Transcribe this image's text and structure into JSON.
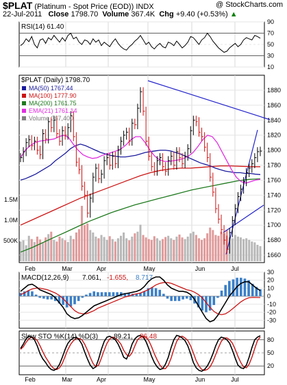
{
  "header": {
    "symbol": "$PLAT",
    "name": "(Platinum  - Spot Price (EOD))",
    "exchange": "INDX",
    "brand": "@ StockCharts.com",
    "date": "22-Jul-2011",
    "close_label": "Close",
    "close_value": "1798.70",
    "volume_label": "Volume",
    "volume_value": "367.4K",
    "chg_label": "Chg",
    "chg_value": "+9.40 (+0.53%)",
    "chg_arrow": "▲"
  },
  "chart_data": [
    {
      "type": "line",
      "panel": "rsi",
      "legend": "RSI(14) 61.40",
      "ylim": [
        10,
        90
      ],
      "yticks": [
        "90",
        "70",
        "50",
        "30",
        "10"
      ],
      "series": [
        {
          "name": "RSI(14)",
          "color": "#000000",
          "values": [
            48,
            52,
            60,
            55,
            64,
            50,
            44,
            58,
            60,
            52,
            62,
            58,
            66,
            60,
            54,
            62,
            56,
            66,
            70,
            60,
            63,
            54,
            50,
            58,
            56,
            50,
            60,
            54,
            58,
            48,
            54,
            50,
            46,
            54,
            60,
            52,
            46,
            42,
            40,
            46,
            50,
            56,
            60,
            66,
            58,
            50,
            54,
            46,
            42,
            48,
            52,
            46,
            44,
            54,
            52,
            48,
            56,
            50,
            44,
            48,
            54,
            64,
            62,
            56,
            50,
            58,
            62,
            70,
            64,
            56,
            50,
            44,
            40,
            36,
            38,
            44,
            48,
            52,
            46,
            50,
            58,
            62,
            60,
            58,
            66,
            64,
            61
          ]
        }
      ]
    },
    {
      "type": "line",
      "panel": "price",
      "title": "$PLAT (Daily) 1798.70",
      "legend": [
        {
          "label": "MA(50) 1767.44",
          "color": "#1a1a9e"
        },
        {
          "label": "MA(100) 1777.90",
          "color": "#cc1414"
        },
        {
          "label": "MA(200) 1761.75",
          "color": "#1e7a1e"
        },
        {
          "label": "EMA(21) 1761.14",
          "color": "#e12ee1"
        },
        {
          "label": "Volume 367,400",
          "color": "#808080"
        }
      ],
      "ylim": [
        1650,
        1900
      ],
      "yticks": [
        "1880",
        "1860",
        "1840",
        "1820",
        "1800",
        "1780",
        "1760",
        "1740",
        "1720",
        "1700",
        "1680",
        "1660"
      ],
      "volume_ticks": [
        "1.5M",
        "1.0M",
        "500K"
      ],
      "xlabels": [
        "Feb",
        "Mar",
        "Apr",
        "May",
        "Jun",
        "Jul"
      ],
      "close": [
        1790,
        1798,
        1810,
        1814,
        1806,
        1812,
        1800,
        1794,
        1822,
        1815,
        1838,
        1830,
        1840,
        1822,
        1812,
        1826,
        1820,
        1830,
        1846,
        1818,
        1784,
        1774,
        1752,
        1740,
        1716,
        1736,
        1764,
        1776,
        1762,
        1768,
        1786,
        1790,
        1780,
        1792,
        1782,
        1800,
        1812,
        1820,
        1824,
        1812,
        1836,
        1834,
        1856,
        1878,
        1852,
        1812,
        1792,
        1778,
        1772,
        1786,
        1790,
        1778,
        1772,
        1786,
        1792,
        1780,
        1798,
        1790,
        1782,
        1792,
        1802,
        1826,
        1840,
        1838,
        1824,
        1818,
        1804,
        1790,
        1764,
        1744,
        1722,
        1708,
        1694,
        1680,
        1668,
        1690,
        1706,
        1722,
        1738,
        1748,
        1758,
        1770,
        1776,
        1782,
        1790,
        1798,
        1798.7
      ],
      "ma50": [
        1760,
        1762,
        1765,
        1768,
        1772,
        1776,
        1780,
        1786,
        1791,
        1796,
        1802,
        1806,
        1808,
        1806,
        1803,
        1800,
        1797,
        1795,
        1793,
        1792,
        1791,
        1791,
        1792,
        1793,
        1795,
        1797,
        1798,
        1799,
        1800,
        1800,
        1799,
        1797,
        1795,
        1792,
        1789,
        1786,
        1783,
        1781,
        1779,
        1776,
        1774,
        1772,
        1771,
        1770,
        1770,
        1769,
        1769,
        1768,
        1767.4
      ],
      "ma100": [
        1700,
        1706,
        1712,
        1718,
        1724,
        1730,
        1736,
        1741,
        1746,
        1751,
        1756,
        1761,
        1766,
        1770,
        1773,
        1775,
        1776,
        1776,
        1777,
        1778,
        1779,
        1779,
        1778.5,
        1778,
        1777.9
      ],
      "ma200": [
        1664,
        1670,
        1677,
        1684,
        1691,
        1698,
        1705,
        1711,
        1717,
        1722,
        1727,
        1731,
        1735,
        1739,
        1743,
        1747,
        1750,
        1753,
        1756,
        1759,
        1761,
        1761.75
      ],
      "ema21": [
        1790,
        1800,
        1806,
        1810,
        1812,
        1813,
        1814,
        1815,
        1818,
        1820,
        1817,
        1808,
        1800,
        1794,
        1791,
        1789,
        1790,
        1793,
        1795,
        1797,
        1799,
        1802,
        1807,
        1814,
        1818,
        1818,
        1810,
        1800,
        1792,
        1787,
        1785,
        1785,
        1786,
        1787,
        1789,
        1792,
        1797,
        1805,
        1814,
        1820,
        1818,
        1810,
        1798,
        1786,
        1774,
        1764,
        1758,
        1756,
        1758,
        1760,
        1761.14
      ],
      "volume": [
        480,
        510,
        390,
        620,
        540,
        470,
        600,
        530,
        450,
        580,
        660,
        720,
        520,
        480,
        600,
        560,
        510,
        470,
        620,
        540,
        700,
        780,
        1350,
        880,
        920,
        760,
        700,
        600,
        560,
        640,
        590,
        520,
        610,
        540,
        480,
        560,
        620,
        700,
        560,
        510,
        600,
        680,
        720,
        890,
        640,
        580,
        540,
        520,
        610,
        560,
        500,
        540,
        590,
        620,
        560,
        520,
        600,
        650,
        580,
        540,
        600,
        680,
        720,
        640,
        560,
        520,
        560,
        680,
        820,
        760,
        640,
        620,
        720,
        680,
        760,
        580,
        560,
        640,
        600,
        580,
        540,
        560,
        520,
        480,
        460,
        400,
        367
      ]
    },
    {
      "type": "bar",
      "panel": "macd",
      "legend_label": "MACD(12,26,9)",
      "macd_value": "7.061",
      "signal_value": "-1.655",
      "hist_value": "8.717",
      "ylim": [
        -40,
        30
      ],
      "yticks": [
        "30",
        "20",
        "10",
        "0",
        "-10",
        "-20",
        "-30"
      ],
      "macd": [
        6,
        10,
        14,
        15,
        12,
        8,
        6,
        4,
        2,
        -2,
        -8,
        -14,
        -22,
        -26,
        -28,
        -27,
        -24,
        -20,
        -16,
        -12,
        -10,
        -8,
        -6,
        -4,
        -2,
        0,
        2,
        3,
        4,
        5,
        6,
        8,
        12,
        18,
        22,
        24,
        24,
        20,
        14,
        10,
        8,
        6,
        6,
        5,
        2,
        -4,
        -12,
        -20,
        -28,
        -32,
        -30,
        -24,
        -16,
        -8,
        0,
        6,
        12,
        16,
        18,
        18,
        14,
        10,
        7.061
      ],
      "signal": [
        2,
        4,
        7,
        9,
        10,
        10,
        9,
        8,
        6,
        4,
        1,
        -3,
        -8,
        -13,
        -18,
        -21,
        -22,
        -22,
        -20,
        -18,
        -15,
        -13,
        -11,
        -9,
        -7,
        -5,
        -3,
        -1,
        0,
        2,
        3,
        4,
        6,
        8,
        11,
        14,
        16,
        17,
        17,
        16,
        14,
        12,
        10,
        8,
        7,
        5,
        2,
        -2,
        -8,
        -14,
        -19,
        -22,
        -23,
        -22,
        -19,
        -15,
        -11,
        -7,
        -4,
        -2,
        -1.5,
        -1.6,
        -1.655
      ],
      "hist": [
        4,
        6,
        7,
        6,
        2,
        -2,
        -3,
        -4,
        -4,
        -6,
        -9,
        -11,
        -14,
        -13,
        -10,
        -6,
        -2,
        2,
        4,
        6,
        5,
        5,
        5,
        5,
        5,
        5,
        5,
        4,
        4,
        3,
        3,
        4,
        6,
        10,
        11,
        10,
        8,
        3,
        -3,
        -6,
        -6,
        -6,
        -4,
        -3,
        -5,
        -9,
        -14,
        -18,
        -20,
        -18,
        -11,
        -2,
        7,
        14,
        19,
        21,
        23,
        23,
        22,
        20,
        15.5,
        11.6,
        8.717
      ]
    },
    {
      "type": "line",
      "panel": "sto",
      "legend_label": "Slow STO %K(14) %D(3)",
      "k_value": "89.21",
      "d_value": "86.48",
      "ylim": [
        0,
        100
      ],
      "yticks": [
        "80",
        "50",
        "20"
      ],
      "k": [
        60,
        70,
        82,
        88,
        86,
        80,
        66,
        48,
        36,
        28,
        18,
        12,
        10,
        14,
        24,
        40,
        58,
        72,
        80,
        84,
        86,
        80,
        70,
        52,
        36,
        22,
        14,
        18,
        36,
        58,
        76,
        86,
        88,
        84,
        80,
        70,
        56,
        40,
        36,
        50,
        70,
        82,
        88,
        90,
        86,
        76,
        60,
        42,
        28,
        18,
        12,
        14,
        24,
        40,
        62,
        80,
        90,
        88,
        84,
        78,
        66,
        48,
        28,
        16,
        10,
        8,
        12,
        20,
        32,
        48,
        66,
        80,
        86,
        84,
        80,
        72,
        56,
        38,
        22,
        16,
        14,
        22,
        40,
        62,
        80,
        86,
        89.21
      ],
      "d": [
        58,
        64,
        74,
        82,
        86,
        84,
        78,
        66,
        52,
        40,
        30,
        20,
        14,
        12,
        16,
        26,
        42,
        58,
        70,
        78,
        83,
        83,
        80,
        70,
        56,
        40,
        26,
        18,
        22,
        38,
        56,
        72,
        82,
        86,
        84,
        78,
        70,
        56,
        46,
        42,
        50,
        66,
        80,
        86,
        88,
        86,
        78,
        64,
        48,
        34,
        22,
        14,
        14,
        22,
        38,
        58,
        76,
        86,
        88,
        84,
        78,
        66,
        50,
        32,
        20,
        12,
        10,
        12,
        18,
        30,
        46,
        62,
        76,
        84,
        84,
        80,
        72,
        58,
        42,
        28,
        18,
        16,
        24,
        40,
        60,
        78,
        86.48
      ]
    }
  ]
}
